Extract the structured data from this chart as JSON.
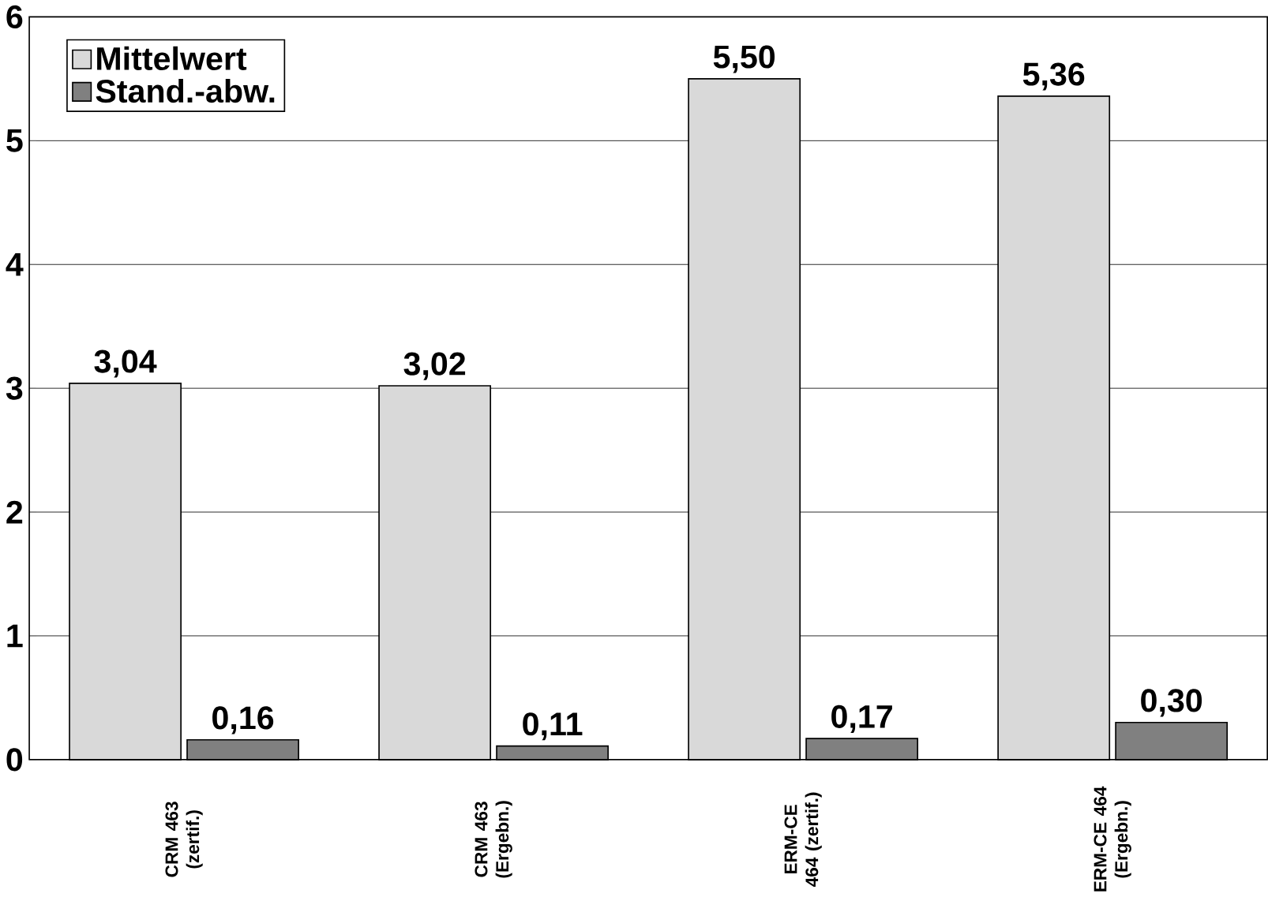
{
  "chart_data": {
    "type": "bar",
    "categories": [
      "CRM 463 (zertif.)",
      "CRM 463 (Ergebn.)",
      "ERM-CE 464 (zertif.)",
      "ERM-CE 464 (Ergebn.)"
    ],
    "series": [
      {
        "name": "Mittelwert",
        "color": "#d9d9d9",
        "values": [
          3.04,
          3.02,
          5.5,
          5.36
        ],
        "value_labels": [
          "3,04",
          "3,02",
          "5,50",
          "5,36"
        ]
      },
      {
        "name": "Stand.-abw.",
        "color": "#808080",
        "values": [
          0.16,
          0.11,
          0.17,
          0.3
        ],
        "value_labels": [
          "0,16",
          "0,11",
          "0,17",
          "0,30"
        ]
      }
    ],
    "ylim": [
      0,
      6
    ],
    "yticks": [
      0,
      1,
      2,
      3,
      4,
      5,
      6
    ],
    "grid": "y",
    "legend": "top left"
  }
}
